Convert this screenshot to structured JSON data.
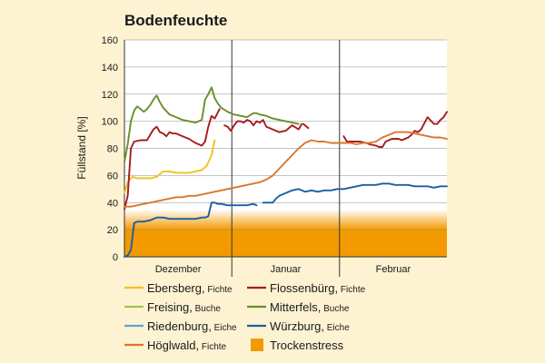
{
  "chart_data": {
    "type": "line",
    "title": "Bodenfeuchte",
    "ylabel": "Füllstand [%]",
    "ylim": [
      0,
      160
    ],
    "yticks": [
      0,
      20,
      40,
      60,
      80,
      100,
      120,
      140,
      160
    ],
    "xlim": [
      0,
      100
    ],
    "months": [
      {
        "label": "Dezember",
        "start": 0,
        "end": 33.3
      },
      {
        "label": "Januar",
        "start": 33.3,
        "end": 66.7
      },
      {
        "label": "Februar",
        "start": 66.7,
        "end": 100
      }
    ],
    "stress_zone": {
      "label": "Trockenstress",
      "range": [
        0,
        35
      ],
      "solid_below": 20,
      "color": "#f39a00"
    },
    "grid": true,
    "series": [
      {
        "name": "Ebersberg",
        "species": "Fichte",
        "color": "#f2c21e",
        "x": [
          0,
          1,
          2.5,
          4,
          6,
          8,
          10,
          12,
          14,
          16,
          18,
          20,
          22,
          24,
          25.5,
          27,
          28
        ],
        "y": [
          47,
          55,
          59,
          58,
          58,
          58,
          59,
          63,
          63,
          62,
          62,
          62,
          63,
          64,
          67,
          75,
          86
        ]
      },
      {
        "name": "Flossenbürg",
        "species": "Fichte",
        "color": "#a61c1c",
        "x": [
          0,
          1,
          2,
          3,
          5,
          7,
          9,
          10,
          11,
          12,
          13,
          14,
          15,
          16,
          18,
          20,
          22,
          24,
          25,
          26,
          27,
          28,
          29.5
        ],
        "y": [
          35,
          45,
          80,
          85,
          86,
          86,
          94,
          96,
          92,
          91,
          89,
          92,
          91,
          91,
          89,
          87,
          84,
          82,
          85,
          96,
          104,
          102,
          109
        ],
        "segments": [
          {
            "x": [
              31,
              32,
              33,
              34,
              35,
              36,
              37,
              38,
              39,
              40,
              41,
              42,
              43,
              44,
              45,
              46,
              48,
              50,
              52,
              54,
              55
            ],
            "y": [
              97,
              96,
              93,
              97,
              100,
              100,
              99,
              101,
              100,
              97,
              100,
              99,
              101,
              96,
              95,
              94,
              92,
              93,
              97,
              94,
              98
            ]
          },
          {
            "x": [
              55.5,
              56,
              57
            ],
            "y": [
              98,
              97,
              95
            ]
          },
          {
            "x": [
              68,
              69,
              71,
              73,
              75,
              76,
              78,
              79,
              80,
              81,
              83,
              85,
              86,
              88,
              89,
              90,
              91,
              92,
              94,
              96,
              97,
              98,
              99,
              100
            ],
            "y": [
              89,
              85,
              85,
              85,
              84,
              83,
              82,
              81,
              81,
              85,
              87,
              87,
              86,
              88,
              90,
              93,
              92,
              94,
              103,
              98,
              98,
              101,
              103,
              107
            ]
          }
        ]
      },
      {
        "name": "Freising",
        "species": "Buche",
        "color": "#9ec64a",
        "x": [],
        "y": []
      },
      {
        "name": "Mitterfels",
        "species": "Buche",
        "color": "#6a8e2b",
        "x": [
          0,
          1,
          2,
          3,
          4,
          6,
          7,
          8,
          9,
          10,
          11,
          12,
          14,
          16,
          18,
          20,
          22,
          24,
          25,
          26,
          27,
          28,
          29,
          30,
          32,
          34,
          36,
          38,
          40,
          41,
          42,
          44,
          46,
          48,
          50,
          52,
          54
        ],
        "y": [
          70,
          83,
          100,
          108,
          111,
          107,
          109,
          112,
          116,
          119,
          114,
          110,
          105,
          103,
          101,
          100,
          99,
          101,
          116,
          120,
          125,
          117,
          113,
          110,
          107,
          105,
          104,
          103,
          106,
          106,
          105,
          104,
          102,
          101,
          100,
          99,
          98
        ]
      },
      {
        "name": "Riedenburg",
        "species": "Eiche",
        "color": "#5aa4d8",
        "x": [],
        "y": []
      },
      {
        "name": "Würzburg",
        "species": "Eiche",
        "color": "#1a5ea5",
        "x": [
          0,
          1,
          2,
          3,
          4,
          6,
          8,
          10,
          12,
          14,
          16,
          18,
          20,
          22,
          24,
          25,
          26,
          27,
          28,
          29,
          30,
          32,
          34,
          36,
          38,
          40,
          41
        ],
        "y": [
          0,
          1,
          5,
          25,
          26,
          26,
          27,
          29,
          29,
          28,
          28,
          28,
          28,
          28,
          29,
          29,
          30,
          40,
          40,
          39,
          39,
          38,
          38,
          38,
          38,
          39,
          38
        ],
        "segments": [
          {
            "x": [
              43,
              44,
              45,
              46,
              47,
              48,
              50,
              52,
              54,
              56,
              58,
              60,
              62,
              64,
              66,
              68,
              70,
              72,
              74,
              76,
              78,
              80,
              82,
              84,
              86,
              88,
              90,
              92,
              94,
              96,
              98,
              100
            ],
            "y": [
              40,
              40,
              40,
              40,
              43,
              45,
              47,
              49,
              50,
              48,
              49,
              48,
              49,
              49,
              50,
              50,
              51,
              52,
              53,
              53,
              53,
              54,
              54,
              53,
              53,
              53,
              52,
              52,
              52,
              51,
              52,
              52
            ]
          }
        ]
      },
      {
        "name": "Höglwald",
        "species": "Fichte",
        "color": "#d9762a",
        "x": [
          0,
          2,
          4,
          6,
          8,
          10,
          12,
          14,
          16,
          18,
          20,
          22,
          24,
          26,
          28,
          30,
          32,
          34,
          36,
          38,
          40,
          42,
          44,
          46,
          48,
          50,
          52,
          54,
          56,
          58,
          60,
          62,
          64,
          66,
          68,
          70,
          72,
          74,
          76,
          78,
          80,
          82,
          84,
          86,
          88,
          90,
          92,
          94,
          96,
          98,
          100
        ],
        "y": [
          37,
          37,
          38,
          39,
          40,
          41,
          42,
          43,
          44,
          44,
          45,
          45,
          46,
          47,
          48,
          49,
          50,
          51,
          52,
          53,
          54,
          55,
          57,
          60,
          65,
          70,
          75,
          80,
          84,
          86,
          85,
          85,
          84,
          84,
          84,
          84,
          83,
          84,
          84,
          85,
          88,
          90,
          92,
          92,
          92,
          91,
          90,
          89,
          88,
          88,
          87
        ]
      }
    ],
    "legend": [
      {
        "name": "Ebersberg",
        "species": "Fichte",
        "color": "#f2c21e",
        "kind": "line"
      },
      {
        "name": "Flossenbürg",
        "species": "Fichte",
        "color": "#a61c1c",
        "kind": "line"
      },
      {
        "name": "Freising",
        "species": "Buche",
        "color": "#9ec64a",
        "kind": "line"
      },
      {
        "name": "Mitterfels",
        "species": "Buche",
        "color": "#6a8e2b",
        "kind": "line"
      },
      {
        "name": "Riedenburg",
        "species": "Eiche",
        "color": "#5aa4d8",
        "kind": "line"
      },
      {
        "name": "Würzburg",
        "species": "Eiche",
        "color": "#1a5ea5",
        "kind": "line"
      },
      {
        "name": "Höglwald",
        "species": "Fichte",
        "color": "#d9762a",
        "kind": "line"
      },
      {
        "name": "Trockenstress",
        "species": "",
        "color": "#f39a00",
        "kind": "box"
      }
    ]
  }
}
